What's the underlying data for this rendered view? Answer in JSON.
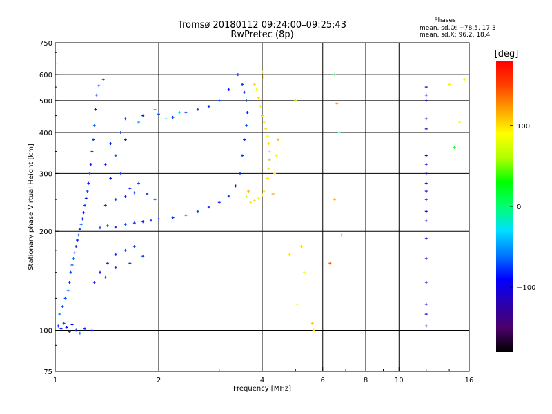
{
  "chart_data": {
    "type": "scatter",
    "title": "Tromsø 20180112 09:24:00–09:25:43",
    "subtitle": "RwPretec (8p)",
    "stats": {
      "heading": "Phases",
      "line_o": "mean, sd,O: −78.5, 17.3",
      "line_x": "mean, sd,X:  96.2, 18.4"
    },
    "xlabel": "Frequency [MHz]",
    "ylabel": "Stationary phase Virtual Height [km]",
    "x_scale": "log",
    "y_scale": "log",
    "xlim": [
      1,
      16
    ],
    "ylim": [
      75,
      750
    ],
    "x_ticks": [
      {
        "value": 1,
        "label": "1"
      },
      {
        "value": 2,
        "label": "2"
      },
      {
        "value": 4,
        "label": "4"
      },
      {
        "value": 6,
        "label": "6"
      },
      {
        "value": 8,
        "label": "8"
      },
      {
        "value": 10,
        "label": "10"
      },
      {
        "value": 16,
        "label": "16"
      }
    ],
    "x_gridlines": [
      2,
      4,
      6,
      8,
      10
    ],
    "y_ticks": [
      {
        "value": 75,
        "label": "75"
      },
      {
        "value": 100,
        "label": "100"
      },
      {
        "value": 200,
        "label": "200"
      },
      {
        "value": 300,
        "label": "300"
      },
      {
        "value": 400,
        "label": "400"
      },
      {
        "value": 500,
        "label": "500"
      },
      {
        "value": 600,
        "label": "600"
      },
      {
        "value": 750,
        "label": "750"
      }
    ],
    "y_gridlines": [
      100,
      200,
      300,
      400,
      500,
      600
    ],
    "colorbar": {
      "label": "[deg]",
      "range": [
        -180,
        180
      ],
      "ticks": [
        {
          "value": 100,
          "label": "100"
        },
        {
          "value": 0,
          "label": "0"
        },
        {
          "value": -100,
          "label": "−100"
        }
      ],
      "colors": [
        "#000000",
        "#4a006a",
        "#2a00b0",
        "#0000ff",
        "#0077ff",
        "#00e0ff",
        "#00ff70",
        "#00ff00",
        "#b0ff00",
        "#ffff00",
        "#ffa000",
        "#ff4000",
        "#ff0000"
      ]
    },
    "series": [
      {
        "points": [
          [
            1.02,
            103,
            -85
          ],
          [
            1.04,
            101,
            -80
          ],
          [
            1.06,
            105,
            -70
          ],
          [
            1.08,
            102,
            -88
          ],
          [
            1.1,
            99,
            -75
          ],
          [
            1.12,
            104,
            -90
          ],
          [
            1.15,
            100,
            -82
          ],
          [
            1.18,
            98,
            -60
          ],
          [
            1.22,
            101,
            -78
          ],
          [
            1.28,
            100,
            -86
          ],
          [
            1.03,
            112,
            -55
          ],
          [
            1.05,
            118,
            -65
          ],
          [
            1.07,
            125,
            -72
          ],
          [
            1.09,
            132,
            -58
          ],
          [
            1.1,
            140,
            -80
          ],
          [
            1.11,
            150,
            -68
          ],
          [
            1.12,
            158,
            -74
          ],
          [
            1.13,
            165,
            -62
          ],
          [
            1.14,
            172,
            -85
          ],
          [
            1.15,
            180,
            -77
          ],
          [
            1.16,
            188,
            -90
          ],
          [
            1.17,
            195,
            -70
          ],
          [
            1.18,
            203,
            -82
          ],
          [
            1.19,
            210,
            -66
          ],
          [
            1.2,
            218,
            -79
          ],
          [
            1.21,
            228,
            -88
          ],
          [
            1.22,
            240,
            -73
          ],
          [
            1.23,
            252,
            -81
          ],
          [
            1.24,
            265,
            -69
          ],
          [
            1.25,
            280,
            -84
          ],
          [
            1.26,
            300,
            -76
          ],
          [
            1.27,
            320,
            -87
          ],
          [
            1.28,
            350,
            -72
          ],
          [
            1.29,
            380,
            -80
          ],
          [
            1.3,
            420,
            -68
          ],
          [
            1.31,
            470,
            -83
          ],
          [
            1.32,
            520,
            -75
          ],
          [
            1.34,
            555,
            -89
          ],
          [
            1.38,
            580,
            -78
          ],
          [
            1.35,
            205,
            -82
          ],
          [
            1.42,
            208,
            -76
          ],
          [
            1.5,
            206,
            -85
          ],
          [
            1.6,
            210,
            -70
          ],
          [
            1.7,
            212,
            -79
          ],
          [
            1.8,
            214,
            -88
          ],
          [
            1.9,
            216,
            -74
          ],
          [
            2.0,
            218,
            -81
          ],
          [
            2.2,
            220,
            -77
          ],
          [
            2.4,
            224,
            -86
          ],
          [
            2.6,
            230,
            -72
          ],
          [
            2.8,
            237,
            -80
          ],
          [
            3.0,
            245,
            -84
          ],
          [
            3.2,
            256,
            -76
          ],
          [
            3.35,
            275,
            -88
          ],
          [
            3.45,
            300,
            -82
          ],
          [
            3.5,
            340,
            -78
          ],
          [
            3.55,
            380,
            -85
          ],
          [
            3.6,
            420,
            -74
          ],
          [
            3.62,
            460,
            -80
          ],
          [
            3.6,
            500,
            -70
          ],
          [
            3.55,
            530,
            -83
          ],
          [
            3.5,
            560,
            -77
          ],
          [
            1.4,
            240,
            -80
          ],
          [
            1.5,
            250,
            -72
          ],
          [
            1.6,
            255,
            -86
          ],
          [
            1.7,
            262,
            -78
          ],
          [
            1.45,
            290,
            -84
          ],
          [
            1.55,
            300,
            -74
          ],
          [
            1.65,
            270,
            -88
          ],
          [
            1.75,
            280,
            -76
          ],
          [
            1.85,
            260,
            -82
          ],
          [
            1.95,
            250,
            -79
          ],
          [
            1.4,
            320,
            -85
          ],
          [
            1.5,
            340,
            -70
          ],
          [
            1.45,
            370,
            -83
          ],
          [
            1.55,
            400,
            -77
          ],
          [
            1.6,
            380,
            -89
          ],
          [
            1.42,
            160,
            -78
          ],
          [
            1.5,
            170,
            -85
          ],
          [
            1.6,
            175,
            -72
          ],
          [
            1.7,
            180,
            -80
          ],
          [
            1.8,
            168,
            -76
          ],
          [
            1.35,
            150,
            -84
          ],
          [
            1.4,
            145,
            -70
          ],
          [
            1.3,
            140,
            -88
          ],
          [
            1.5,
            155,
            -82
          ],
          [
            1.65,
            160,
            -79
          ],
          [
            1.6,
            440,
            -75
          ],
          [
            1.8,
            450,
            -82
          ],
          [
            2.0,
            455,
            -70
          ],
          [
            2.2,
            445,
            -78
          ],
          [
            2.4,
            460,
            -86
          ],
          [
            2.6,
            470,
            -73
          ],
          [
            2.8,
            480,
            -80
          ],
          [
            3.0,
            500,
            -76
          ],
          [
            3.2,
            540,
            -84
          ],
          [
            3.4,
            600,
            -79
          ],
          [
            2.1,
            440,
            -10
          ],
          [
            1.95,
            470,
            -35
          ],
          [
            2.3,
            460,
            -25
          ],
          [
            1.75,
            430,
            -45
          ]
        ]
      },
      {
        "points": [
          [
            3.7,
            245,
            95
          ],
          [
            3.8,
            248,
            100
          ],
          [
            3.9,
            252,
            92
          ],
          [
            4.0,
            258,
            105
          ],
          [
            4.05,
            265,
            98
          ],
          [
            4.1,
            275,
            90
          ],
          [
            4.15,
            290,
            102
          ],
          [
            4.18,
            310,
            96
          ],
          [
            4.2,
            330,
            108
          ],
          [
            4.2,
            350,
            94
          ],
          [
            4.18,
            370,
            100
          ],
          [
            4.15,
            390,
            88
          ],
          [
            4.1,
            410,
            104
          ],
          [
            4.05,
            430,
            97
          ],
          [
            4.0,
            450,
            110
          ],
          [
            3.95,
            480,
            92
          ],
          [
            3.9,
            510,
            99
          ],
          [
            3.85,
            540,
            86
          ],
          [
            3.8,
            560,
            103
          ],
          [
            3.6,
            255,
            75
          ],
          [
            3.65,
            265,
            115
          ],
          [
            4.3,
            260,
            120
          ],
          [
            4.35,
            300,
            95
          ],
          [
            4.4,
            340,
            85
          ],
          [
            4.45,
            380,
            112
          ],
          [
            4.0,
            610,
            110
          ],
          [
            4.02,
            590,
            98
          ],
          [
            5.0,
            500,
            60
          ],
          [
            5.05,
            120,
            95
          ],
          [
            5.6,
            105,
            110
          ],
          [
            5.65,
            100,
            102
          ],
          [
            5.2,
            180,
            105
          ],
          [
            4.8,
            170,
            98
          ],
          [
            5.3,
            150,
            88
          ],
          [
            6.3,
            160,
            140
          ],
          [
            6.5,
            250,
            120
          ],
          [
            6.8,
            195,
            112
          ],
          [
            6.6,
            490,
            140
          ],
          [
            6.5,
            600,
            10
          ],
          [
            6.7,
            400,
            -20
          ],
          [
            14,
            560,
            95
          ],
          [
            15,
            430,
            90
          ],
          [
            14.5,
            360,
            30
          ],
          [
            15.5,
            580,
            80
          ]
        ]
      },
      {
        "points": [
          [
            12,
            550,
            -105
          ],
          [
            12,
            520,
            -110
          ],
          [
            12,
            500,
            -100
          ],
          [
            12,
            440,
            -95
          ],
          [
            12,
            410,
            -115
          ],
          [
            12,
            340,
            -108
          ],
          [
            12,
            320,
            -102
          ],
          [
            12,
            300,
            -98
          ],
          [
            12,
            280,
            -112
          ],
          [
            12,
            250,
            -104
          ],
          [
            12,
            215,
            -99
          ],
          [
            12,
            190,
            -107
          ],
          [
            12,
            165,
            -101
          ],
          [
            12,
            140,
            -111
          ],
          [
            12,
            120,
            -96
          ],
          [
            12,
            112,
            -103
          ],
          [
            12,
            103,
            -109
          ],
          [
            12,
            230,
            -92
          ],
          [
            12,
            265,
            -100
          ]
        ]
      }
    ]
  }
}
